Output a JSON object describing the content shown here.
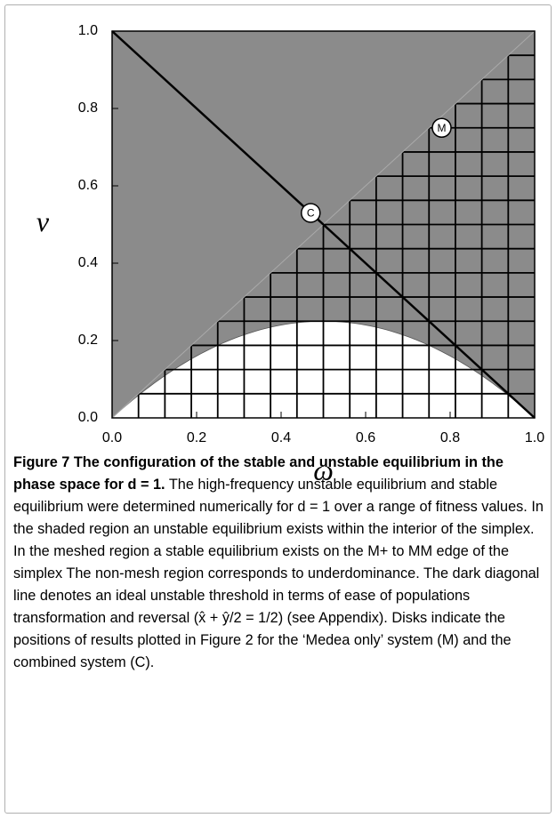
{
  "chart_data": {
    "type": "region",
    "xlabel": "ω",
    "ylabel": "ν",
    "xlim": [
      0,
      1
    ],
    "ylim": [
      0,
      1
    ],
    "xticks": [
      {
        "value": 0,
        "label": "0.0"
      },
      {
        "value": 0.2,
        "label": "0.2"
      },
      {
        "value": 0.4,
        "label": "0.4"
      },
      {
        "value": 0.6,
        "label": "0.6"
      },
      {
        "value": 0.8,
        "label": "0.8"
      },
      {
        "value": 1,
        "label": "1.0"
      }
    ],
    "yticks": [
      {
        "value": 0,
        "label": "0.0"
      },
      {
        "value": 0.2,
        "label": "0.2"
      },
      {
        "value": 0.4,
        "label": "0.4"
      },
      {
        "value": 0.6,
        "label": "0.6"
      },
      {
        "value": 0.8,
        "label": "0.8"
      },
      {
        "value": 1,
        "label": "1.0"
      }
    ],
    "points": [
      {
        "name": "C",
        "x": 0.47,
        "y": 0.53
      },
      {
        "name": "M",
        "x": 0.78,
        "y": 0.75
      }
    ],
    "color": "#8b8b8b"
  },
  "caption": {
    "heading": "Figure 7 The configuration of the stable and unstable equilibrium in the phase space for d = 1.",
    "text": "The high-frequency unstable equilibrium and stable equilibrium were determined numerically for d = 1 over a range of fitness values. In the shaded region an unstable equilibrium exists within the interior of the simplex. In the meshed region a stable equilibrium exists on the M+ to MM edge of the simplex The non-mesh region corresponds to underdominance. The dark diagonal line denotes an ideal unstable threshold in terms of ease of populations transformation and reversal (x̂ + ŷ/2 = 1/2) (see Appendix). Disks indicate the positions of results plotted in Figure 2 for the ‘Medea only’ system (M) and the combined system (C)."
  }
}
